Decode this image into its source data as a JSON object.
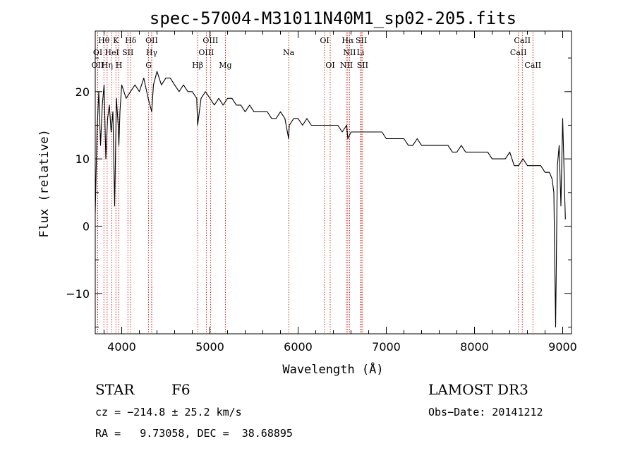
{
  "chart_data": {
    "type": "line",
    "title": "spec-57004-M31011N40M1_sp02-205.fits",
    "xlabel": "Wavelength (Å)",
    "ylabel": "Flux (relative)",
    "xlim": [
      3700,
      9100
    ],
    "ylim": [
      -16,
      29
    ],
    "x_ticks": [
      4000,
      5000,
      6000,
      7000,
      8000,
      9000
    ],
    "x_tick_labels": [
      "4000",
      "5000",
      "6000",
      "7000",
      "8000",
      "9000"
    ],
    "y_ticks": [
      -10,
      0,
      10,
      20
    ],
    "y_tick_labels": [
      "−10",
      "0",
      "10",
      "20"
    ],
    "grid": false,
    "line_color": "#000000",
    "marker_color": "#cc0000",
    "spectrum": {
      "x": [
        3700,
        3720,
        3740,
        3760,
        3780,
        3800,
        3820,
        3840,
        3860,
        3880,
        3900,
        3920,
        3940,
        3960,
        3968,
        3980,
        4000,
        4050,
        4100,
        4150,
        4200,
        4250,
        4300,
        4340,
        4360,
        4400,
        4450,
        4500,
        4550,
        4600,
        4650,
        4700,
        4750,
        4800,
        4850,
        4861,
        4900,
        4950,
        5000,
        5050,
        5100,
        5150,
        5200,
        5250,
        5300,
        5350,
        5400,
        5450,
        5500,
        5550,
        5600,
        5650,
        5700,
        5750,
        5800,
        5850,
        5893,
        5900,
        5950,
        6000,
        6050,
        6100,
        6150,
        6200,
        6250,
        6300,
        6350,
        6400,
        6450,
        6500,
        6550,
        6563,
        6600,
        6650,
        6700,
        6750,
        6800,
        6850,
        6900,
        6950,
        7000,
        7050,
        7100,
        7150,
        7200,
        7250,
        7300,
        7350,
        7400,
        7450,
        7500,
        7550,
        7600,
        7650,
        7700,
        7750,
        7800,
        7850,
        7900,
        7950,
        8000,
        8050,
        8100,
        8150,
        8200,
        8250,
        8300,
        8350,
        8400,
        8450,
        8500,
        8550,
        8600,
        8650,
        8700,
        8750,
        8800,
        8850,
        8880,
        8900,
        8920,
        8940,
        8960,
        8980,
        9000,
        9030
      ],
      "y": [
        2,
        14,
        20,
        12,
        18,
        21,
        10,
        16,
        18,
        14,
        17,
        3,
        19,
        15,
        12,
        17,
        21,
        19,
        20,
        21,
        20,
        22,
        19,
        17,
        21,
        23,
        21,
        22,
        22,
        21,
        20,
        21,
        20,
        20,
        19,
        15,
        19,
        20,
        19,
        18,
        19,
        18,
        19,
        19,
        18,
        18,
        17,
        18,
        17,
        17,
        17,
        17,
        16,
        16,
        17,
        16,
        13,
        15,
        16,
        16,
        15,
        16,
        15,
        15,
        15,
        15,
        15,
        15,
        15,
        14,
        15,
        13,
        14,
        14,
        14,
        14,
        14,
        14,
        14,
        14,
        13,
        13,
        13,
        13,
        13,
        12,
        12,
        13,
        12,
        12,
        12,
        12,
        12,
        12,
        12,
        11,
        11,
        12,
        11,
        11,
        11,
        11,
        11,
        11,
        10,
        10,
        10,
        10,
        11,
        9,
        9,
        10,
        9,
        9,
        9,
        9,
        8,
        8,
        7,
        5,
        -15,
        9,
        12,
        3,
        16,
        1
      ]
    },
    "line_markers": [
      {
        "label": "Hθ",
        "x": 3798,
        "row": 1
      },
      {
        "label": "K",
        "x": 3934,
        "row": 1
      },
      {
        "label": "Hδ",
        "x": 4102,
        "row": 1
      },
      {
        "label": "OII",
        "x": 4340,
        "row": 1
      },
      {
        "label": "OIII",
        "x": 5007,
        "row": 1
      },
      {
        "label": "OI",
        "x": 6300,
        "row": 1
      },
      {
        "label": "Hα",
        "x": 6563,
        "row": 1
      },
      {
        "label": "SII",
        "x": 6717,
        "row": 1
      },
      {
        "label": "CaII",
        "x": 8542,
        "row": 1
      },
      {
        "label": "OI",
        "x": 3728,
        "row": 2
      },
      {
        "label": "HeI",
        "x": 3889,
        "row": 2
      },
      {
        "label": "SII",
        "x": 4070,
        "row": 2
      },
      {
        "label": "Hγ",
        "x": 4340,
        "row": 2
      },
      {
        "label": "OIII",
        "x": 4959,
        "row": 2
      },
      {
        "label": "Na",
        "x": 5893,
        "row": 2
      },
      {
        "label": "NII",
        "x": 6583,
        "row": 2
      },
      {
        "label": "Li",
        "x": 6708,
        "row": 2
      },
      {
        "label": "CaII",
        "x": 8498,
        "row": 2
      },
      {
        "label": "OII",
        "x": 3727,
        "row": 3
      },
      {
        "label": "Hη",
        "x": 3835,
        "row": 3
      },
      {
        "label": "H",
        "x": 3968,
        "row": 3
      },
      {
        "label": "G",
        "x": 4305,
        "row": 3
      },
      {
        "label": "Hβ",
        "x": 4861,
        "row": 3
      },
      {
        "label": "Mg",
        "x": 5175,
        "row": 3
      },
      {
        "label": "OI",
        "x": 6364,
        "row": 3
      },
      {
        "label": "NII",
        "x": 6548,
        "row": 3
      },
      {
        "label": "SII",
        "x": 6731,
        "row": 3
      },
      {
        "label": "CaII",
        "x": 8662,
        "row": 3
      }
    ]
  },
  "info": {
    "object_class": "STAR",
    "subclass": "F6",
    "survey": "LAMOST DR3",
    "cz_line": "cz = −214.8 ± 25.2 km/s",
    "obs_date_line": "Obs−Date: 20141212",
    "coords_line": "RA =   9.73058, DEC =  38.68895"
  }
}
